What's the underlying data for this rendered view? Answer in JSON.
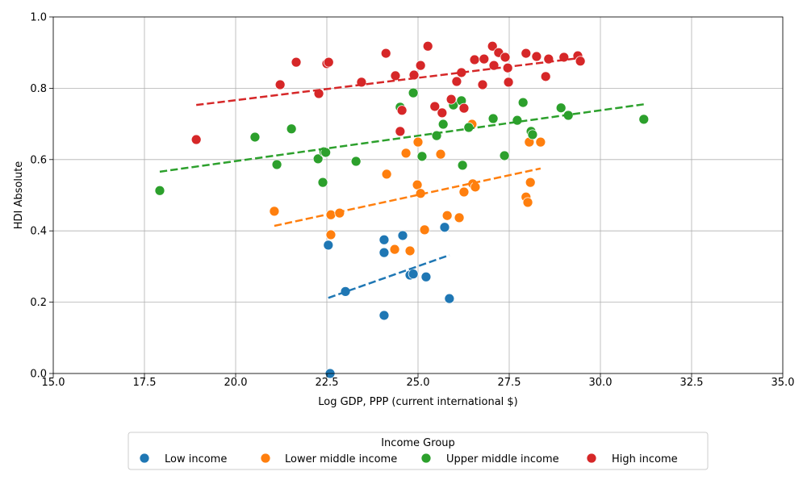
{
  "chart_data": {
    "type": "scatter",
    "xlabel": "Log GDP, PPP (current international $)",
    "ylabel": "HDI Absolute",
    "xlim": [
      15,
      35
    ],
    "ylim": [
      0,
      1.0
    ],
    "x_ticks": [
      "15.0",
      "17.5",
      "20.0",
      "22.5",
      "25.0",
      "27.5",
      "30.0",
      "32.5",
      "35.0"
    ],
    "y_ticks": [
      "0.0",
      "0.2",
      "0.4",
      "0.6",
      "0.8",
      "1.0"
    ],
    "grid": true,
    "legend": {
      "title": "Income Group",
      "placement": "bottom-center"
    },
    "series": [
      {
        "name": "Low income",
        "color": "#1f77b4",
        "points": [
          [
            22.59,
            0.0
          ],
          [
            22.54,
            0.36
          ],
          [
            23.01,
            0.23
          ],
          [
            24.07,
            0.375
          ],
          [
            24.07,
            0.339
          ],
          [
            24.07,
            0.163
          ],
          [
            24.58,
            0.387
          ],
          [
            24.78,
            0.276
          ],
          [
            24.87,
            0.279
          ],
          [
            25.22,
            0.271
          ],
          [
            25.73,
            0.41
          ],
          [
            25.86,
            0.21
          ]
        ],
        "trend": {
          "style": "dashed",
          "x": [
            22.54,
            25.86
          ],
          "y": [
            0.212,
            0.332
          ]
        }
      },
      {
        "name": "Lower middle income",
        "color": "#ff7f0e",
        "points": [
          [
            21.06,
            0.455
          ],
          [
            22.61,
            0.445
          ],
          [
            22.61,
            0.389
          ],
          [
            22.85,
            0.45
          ],
          [
            24.14,
            0.559
          ],
          [
            24.36,
            0.348
          ],
          [
            24.67,
            0.618
          ],
          [
            24.78,
            0.344
          ],
          [
            25.0,
            0.649
          ],
          [
            24.98,
            0.529
          ],
          [
            25.07,
            0.505
          ],
          [
            25.18,
            0.403
          ],
          [
            25.62,
            0.615
          ],
          [
            25.8,
            0.443
          ],
          [
            26.13,
            0.437
          ],
          [
            26.26,
            0.509
          ],
          [
            26.48,
            0.699
          ],
          [
            26.5,
            0.532
          ],
          [
            26.57,
            0.523
          ],
          [
            27.96,
            0.495
          ],
          [
            28.01,
            0.48
          ],
          [
            28.05,
            0.649
          ],
          [
            28.08,
            0.536
          ],
          [
            28.36,
            0.649
          ]
        ],
        "trend": {
          "style": "dashed",
          "x": [
            21.06,
            28.36
          ],
          "y": [
            0.414,
            0.575
          ]
        }
      },
      {
        "name": "Upper middle income",
        "color": "#2ca02c",
        "points": [
          [
            17.92,
            0.513
          ],
          [
            20.53,
            0.663
          ],
          [
            21.13,
            0.586
          ],
          [
            21.53,
            0.686
          ],
          [
            22.26,
            0.602
          ],
          [
            22.39,
            0.536
          ],
          [
            22.42,
            0.622
          ],
          [
            22.47,
            0.62
          ],
          [
            23.3,
            0.595
          ],
          [
            24.51,
            0.747
          ],
          [
            24.87,
            0.787
          ],
          [
            25.11,
            0.609
          ],
          [
            25.51,
            0.667
          ],
          [
            25.69,
            0.699
          ],
          [
            25.97,
            0.753
          ],
          [
            26.19,
            0.765
          ],
          [
            26.22,
            0.584
          ],
          [
            26.39,
            0.69
          ],
          [
            27.06,
            0.715
          ],
          [
            27.37,
            0.611
          ],
          [
            27.72,
            0.71
          ],
          [
            27.88,
            0.76
          ],
          [
            28.1,
            0.679
          ],
          [
            28.14,
            0.67
          ],
          [
            28.92,
            0.745
          ],
          [
            29.12,
            0.724
          ],
          [
            31.19,
            0.713
          ]
        ],
        "trend": {
          "style": "dashed",
          "x": [
            17.92,
            31.19
          ],
          "y": [
            0.566,
            0.755
          ]
        }
      },
      {
        "name": "High income",
        "color": "#d62728",
        "points": [
          [
            18.92,
            0.656
          ],
          [
            21.22,
            0.81
          ],
          [
            21.66,
            0.873
          ],
          [
            22.28,
            0.785
          ],
          [
            22.5,
            0.869
          ],
          [
            22.55,
            0.873
          ],
          [
            23.45,
            0.817
          ],
          [
            24.12,
            0.898
          ],
          [
            24.38,
            0.835
          ],
          [
            24.51,
            0.679
          ],
          [
            24.56,
            0.738
          ],
          [
            24.89,
            0.837
          ],
          [
            25.07,
            0.864
          ],
          [
            25.27,
            0.918
          ],
          [
            25.46,
            0.749
          ],
          [
            25.66,
            0.731
          ],
          [
            25.91,
            0.769
          ],
          [
            26.06,
            0.819
          ],
          [
            26.19,
            0.844
          ],
          [
            26.26,
            0.744
          ],
          [
            26.55,
            0.88
          ],
          [
            26.77,
            0.81
          ],
          [
            26.81,
            0.882
          ],
          [
            27.04,
            0.918
          ],
          [
            27.08,
            0.864
          ],
          [
            27.21,
            0.9
          ],
          [
            27.39,
            0.887
          ],
          [
            27.46,
            0.857
          ],
          [
            27.48,
            0.817
          ],
          [
            27.96,
            0.898
          ],
          [
            28.25,
            0.889
          ],
          [
            28.5,
            0.833
          ],
          [
            28.58,
            0.882
          ],
          [
            29.0,
            0.887
          ],
          [
            29.38,
            0.891
          ],
          [
            29.45,
            0.876
          ]
        ],
        "trend": {
          "style": "dashed",
          "x": [
            18.92,
            29.45
          ],
          "y": [
            0.753,
            0.885
          ]
        }
      }
    ]
  }
}
